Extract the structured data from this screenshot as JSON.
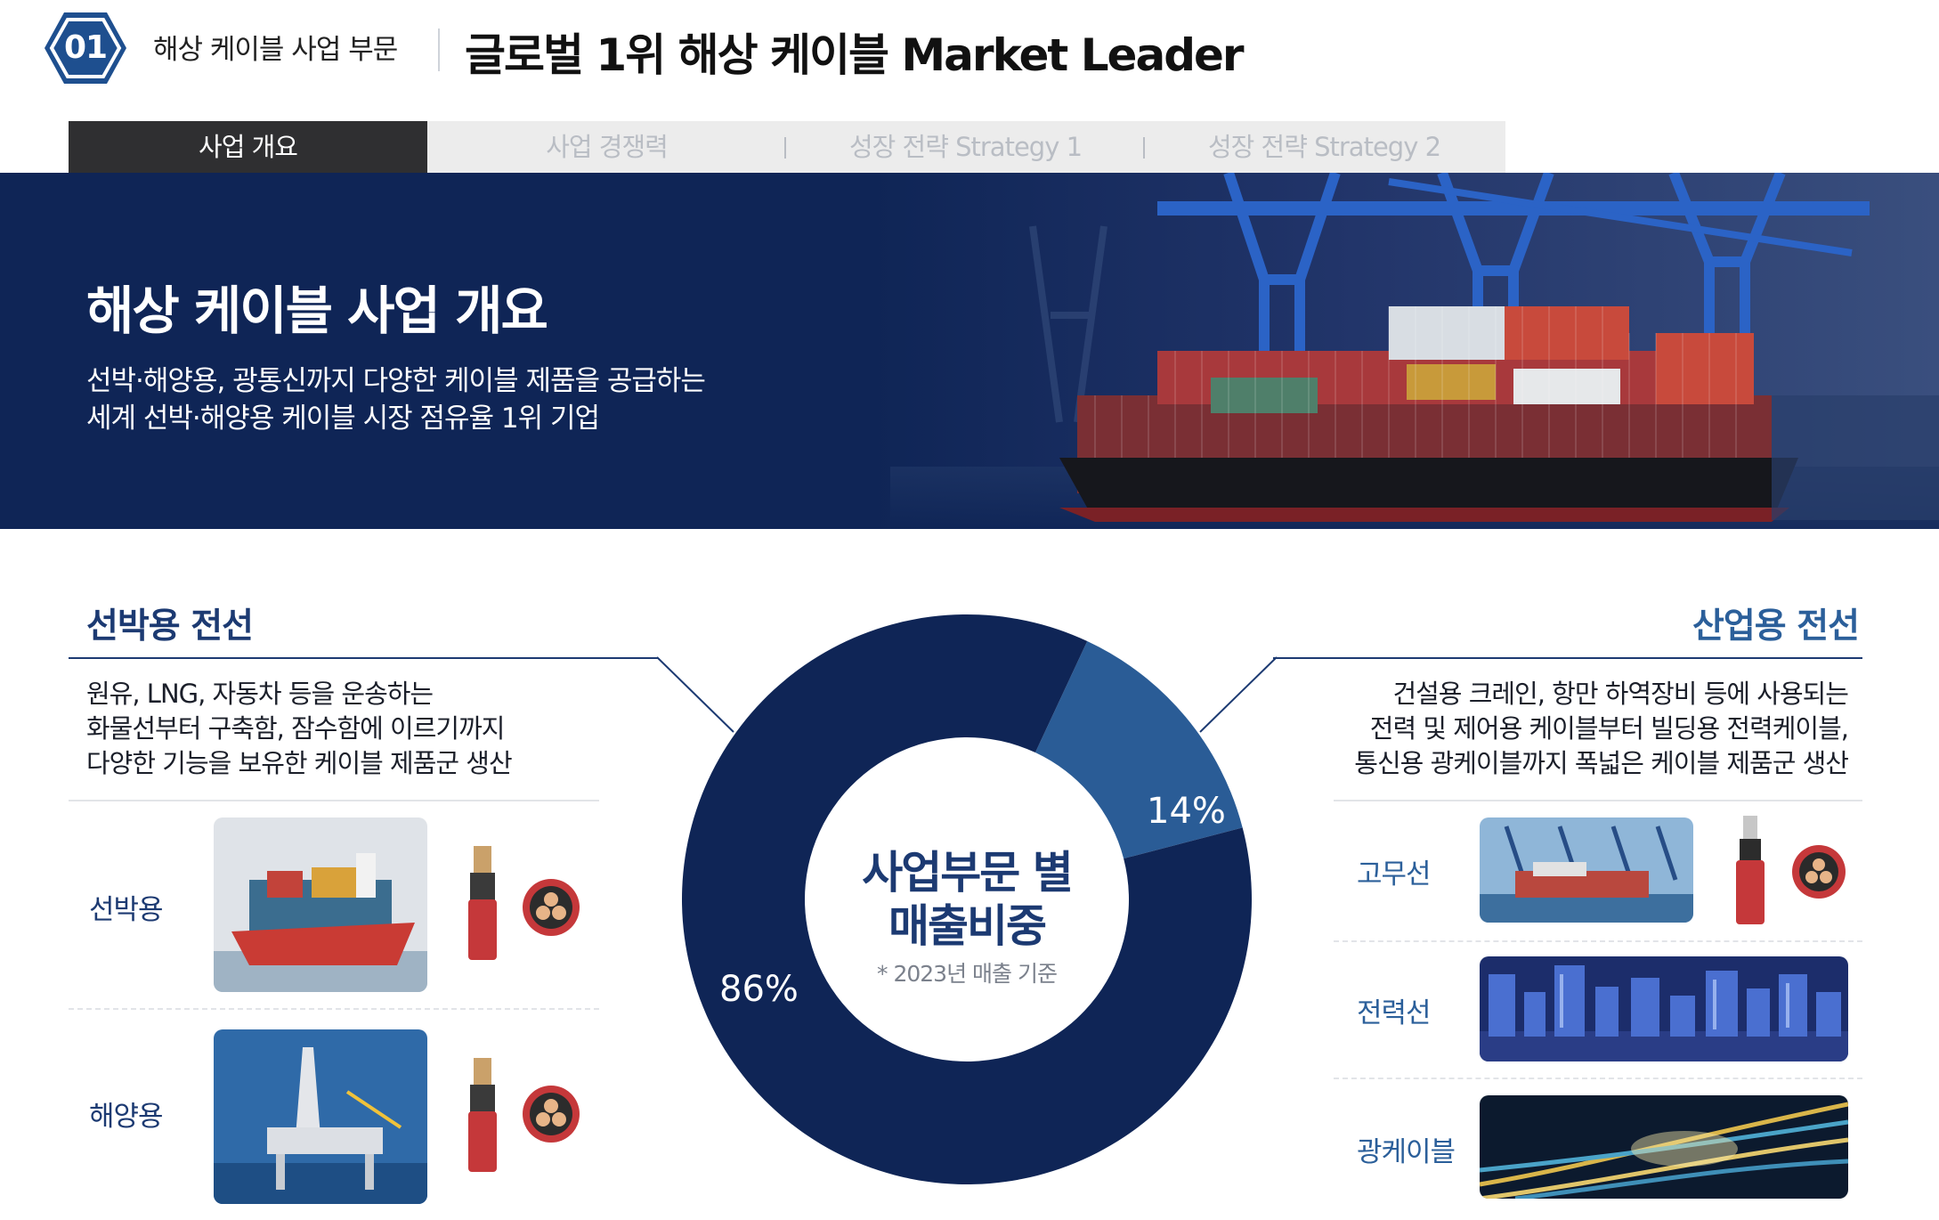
{
  "header": {
    "badge": "01",
    "section": "해상 케이블 사업 부문",
    "title": "글로벌 1위 해상 케이블 Market Leader"
  },
  "tabs": [
    {
      "label": "사업 개요",
      "active": true
    },
    {
      "label": "사업 경쟁력",
      "active": false
    },
    {
      "label": "성장 전략 Strategy 1",
      "active": false
    },
    {
      "label": "성장 전략 Strategy 2",
      "active": false
    }
  ],
  "hero": {
    "title": "해상 케이블 사업 개요",
    "line1": "선박·해양용, 광통신까지 다양한 케이블 제품을 공급하는",
    "line2": "세계 선박·해양용 케이블 시장 점유율 1위 기업"
  },
  "left": {
    "heading": "선박용 전선",
    "desc": [
      "원유, LNG, 자동차 등을 운송하는",
      "화물선부터 구축함, 잠수함에 이르기까지",
      "다양한 기능을 보유한 케이블 제품군 생산"
    ],
    "items": [
      {
        "label": "선박용"
      },
      {
        "label": "해양용"
      }
    ]
  },
  "right": {
    "heading": "산업용 전선",
    "desc": [
      "건설용 크레인, 항만 하역장비 등에 사용되는",
      "전력 및 제어용 케이블부터 빌딩용 전력케이블,",
      "통신용 광케이블까지 폭넓은 케이블 제품군 생산"
    ],
    "items": [
      {
        "label": "고무선"
      },
      {
        "label": "전력선"
      },
      {
        "label": "광케이블"
      }
    ]
  },
  "chart_data": {
    "type": "pie",
    "categories": [
      "선박용 전선",
      "산업용 전선"
    ],
    "values": [
      86,
      14
    ],
    "labels": [
      "86%",
      "14%"
    ],
    "center_title_1": "사업부문 별",
    "center_title_2": "매출비중",
    "note": "* 2023년 매출 기준",
    "colors": [
      "#0f2556",
      "#2a5c96"
    ]
  },
  "colors": {
    "navy": "#0f2556",
    "accent_blue": "#2a5c96",
    "heading_navy": "#1c3a72",
    "tab_active": "#2f2f31",
    "tab_bg": "#ececec"
  }
}
